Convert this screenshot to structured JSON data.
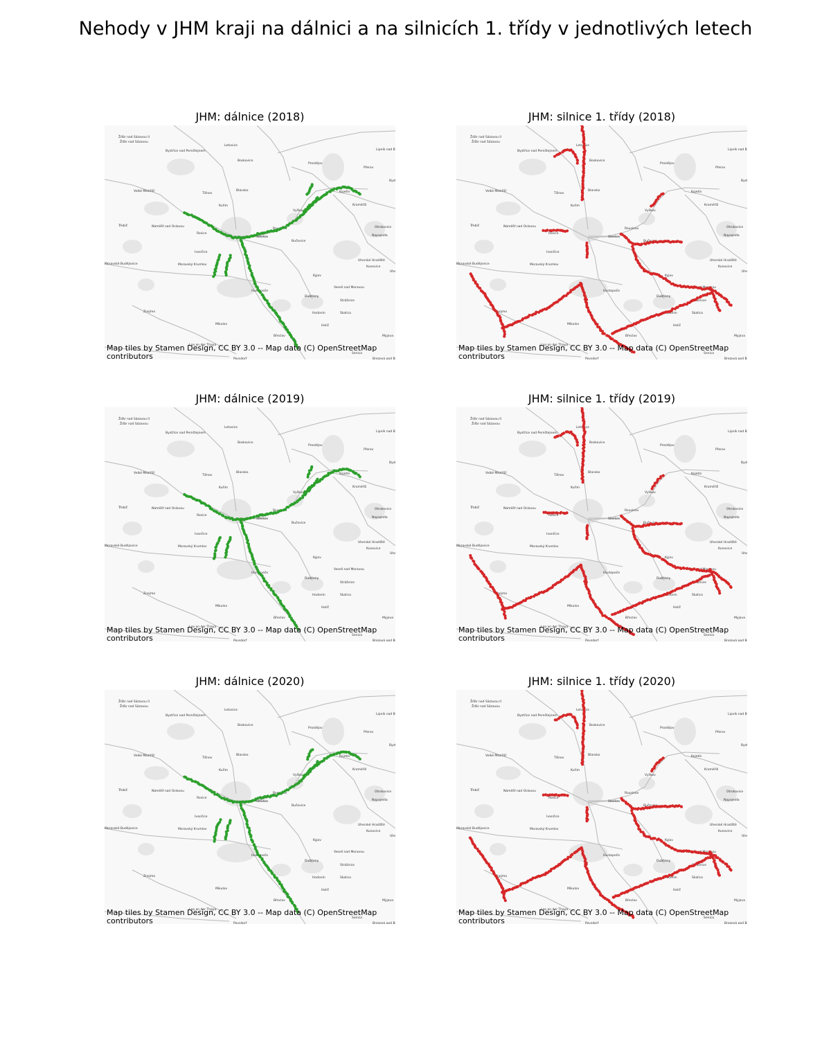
{
  "suptitle": "Nehody v JHM kraji na dálnici a na silnicích 1. třídy v jednotlivých letech",
  "attribution": "Map tiles by Stamen Design, CC BY 3.0 -- Map data (C) OpenStreetMap contributors",
  "colors": {
    "motorway": "#2ca02c",
    "first_class": "#d62728",
    "roads": "#b8b8b8",
    "urban": "#e6e6e6"
  },
  "map": {
    "basemap": "stamen-toner-lite",
    "place_labels": [
      "Žďár nad Sázavou II",
      "Žďár nad Sázavou",
      "Bystřice nad Pernštejnem",
      "Letovice",
      "Boskovice",
      "Prostějov",
      "Přerov",
      "Lipník nad Bečvou",
      "Velké Meziříčí",
      "Tišnov",
      "Blansko",
      "Kojetín",
      "Kroměříž",
      "Bystřice",
      "Vyškov",
      "Kuřim",
      "Třebíč",
      "Náměšť nad Oslavou",
      "Rosice",
      "Rousínov",
      "Slavkov",
      "Otrokovice",
      "Bučovice",
      "Napajedla",
      "Ivančice",
      "Uherské Hradiště",
      "Moravské Budějovice",
      "Moravský Krumlov",
      "Kunovice",
      "Uherský Brod",
      "Kyjov",
      "Veselí nad Moravou",
      "Hustopeče",
      "Dubňany",
      "Strážnice",
      "Znojmo",
      "Hodonín",
      "Skalica",
      "Mikulov",
      "Holíč",
      "Břeclav",
      "Laa an der Thaya",
      "Poysdorf",
      "Myjava",
      "Senica",
      "Brezová pod Bradlom"
    ]
  },
  "panels": [
    {
      "title": "JHM: dálnice (2018)",
      "kind": "motorway",
      "year": 2018
    },
    {
      "title": "JHM: silnice 1. třídy (2018)",
      "kind": "first_class",
      "year": 2018
    },
    {
      "title": "JHM: dálnice (2019)",
      "kind": "motorway",
      "year": 2019
    },
    {
      "title": "JHM: silnice 1. třídy (2019)",
      "kind": "first_class",
      "year": 2019
    },
    {
      "title": "JHM: dálnice (2020)",
      "kind": "motorway",
      "year": 2020
    },
    {
      "title": "JHM: silnice 1. třídy (2020)",
      "kind": "first_class",
      "year": 2020
    }
  ]
}
